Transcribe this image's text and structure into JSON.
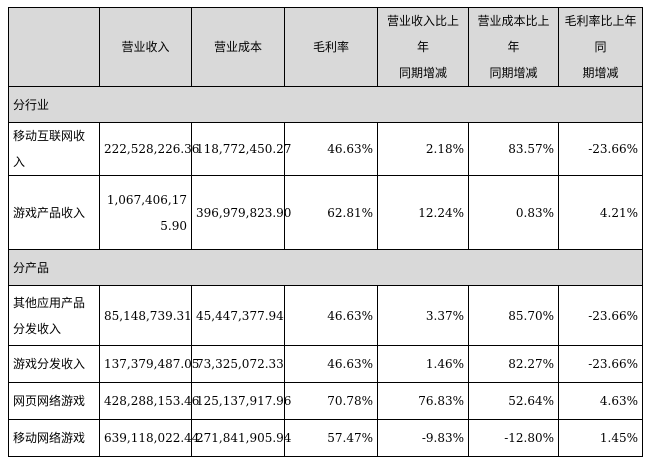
{
  "headers": [
    "",
    "营业收入",
    "营业成本",
    "毛利率",
    "营业收入比上年同期增减",
    "营业成本比上年同期增减",
    "毛利率比上年同期增减"
  ],
  "header_lines": {
    "col4": [
      "营业收入比上年",
      "同期增减"
    ],
    "col5": [
      "营业成本比上年",
      "同期增减"
    ],
    "col6": [
      "毛利率比上年同",
      "期增减"
    ]
  },
  "sections": [
    {
      "title": "分行业",
      "rows": [
        {
          "name": "移动互联网收入",
          "revenue": "222,528,226.36",
          "cost": "118,772,450.27",
          "margin": "46.63%",
          "rev_change": "2.18%",
          "cost_change": "83.57%",
          "margin_change": "-23.66%"
        },
        {
          "name": "游戏产品收入",
          "revenue": "1,067,406,175.90",
          "cost": "396,979,823.90",
          "margin": "62.81%",
          "rev_change": "12.24%",
          "cost_change": "0.83%",
          "margin_change": "4.21%"
        }
      ]
    },
    {
      "title": "分产品",
      "rows": [
        {
          "name": "其他应用产品分发收入",
          "revenue": "85,148,739.31",
          "cost": "45,447,377.94",
          "margin": "46.63%",
          "rev_change": "3.37%",
          "cost_change": "85.70%",
          "margin_change": "-23.66%"
        },
        {
          "name": "游戏分发收入",
          "revenue": "137,379,487.05",
          "cost": "73,325,072.33",
          "margin": "46.63%",
          "rev_change": "1.46%",
          "cost_change": "82.27%",
          "margin_change": "-23.66%"
        },
        {
          "name": "网页网络游戏",
          "revenue": "428,288,153.46",
          "cost": "125,137,917.96",
          "margin": "70.78%",
          "rev_change": "76.83%",
          "cost_change": "52.64%",
          "margin_change": "4.63%"
        },
        {
          "name": "移动网络游戏",
          "revenue": "639,118,022.44",
          "cost": "271,841,905.94",
          "margin": "57.47%",
          "rev_change": "-9.83%",
          "cost_change": "-12.80%",
          "margin_change": "1.45%"
        }
      ]
    }
  ]
}
